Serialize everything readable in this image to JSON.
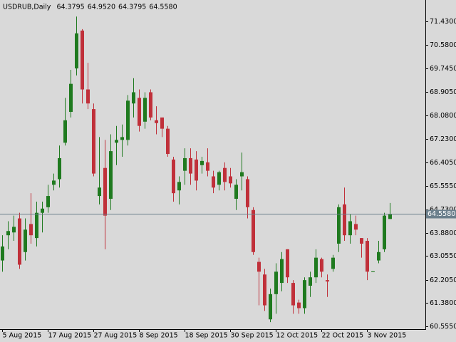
{
  "chart_data": {
    "type": "candlestick",
    "title": "USDRUB,Daily",
    "title_values": [
      "64.3795",
      "64.9520",
      "64.3795",
      "64.5580"
    ],
    "categories": [
      "5 Aug 2015",
      null,
      null,
      null,
      null,
      null,
      null,
      null,
      "17 Aug 2015",
      null,
      null,
      null,
      null,
      null,
      null,
      null,
      "27 Aug 2015",
      null,
      null,
      null,
      null,
      null,
      null,
      null,
      "8 Sep 2015",
      null,
      null,
      null,
      null,
      null,
      null,
      null,
      "18 Sep 2015",
      null,
      null,
      null,
      null,
      null,
      null,
      null,
      "30 Sep 2015",
      null,
      null,
      null,
      null,
      null,
      null,
      null,
      "12 Oct 2015",
      null,
      null,
      null,
      null,
      null,
      null,
      null,
      "22 Oct 2015",
      null,
      null,
      null,
      null,
      null,
      null,
      null,
      "3 Nov 2015",
      null,
      null,
      null,
      null
    ],
    "open": [
      62.9,
      63.8,
      63.9,
      64.4,
      63.2,
      64.2,
      63.7,
      64.6,
      64.8,
      65.6,
      65.8,
      67.1,
      68.2,
      69.75,
      71.1,
      69.0,
      68.3,
      65.2,
      66.2,
      65.1,
      67.1,
      67.2,
      67.2,
      68.5,
      68.7,
      67.85,
      68.9,
      67.9,
      68.0,
      67.6,
      66.5,
      65.4,
      66.1,
      66.55,
      66.5,
      66.3,
      66.4,
      65.9,
      65.6,
      66.2,
      65.9,
      65.1,
      65.9,
      65.8,
      64.7,
      62.85,
      62.4,
      60.8,
      61.7,
      62.1,
      63.3,
      62.1,
      61.4,
      61.2,
      62.0,
      62.3,
      62.95,
      62.2,
      62.6,
      63.5,
      64.9,
      63.8,
      64.2,
      63.7,
      63.6,
      62.5,
      62.9,
      63.3,
      64.3795
    ],
    "high": [
      63.8,
      64.3,
      64.5,
      64.6,
      64.4,
      65.3,
      65.0,
      65.0,
      65.6,
      66.0,
      67.0,
      68.7,
      69.7,
      71.6,
      71.15,
      69.95,
      68.5,
      67.3,
      67.2,
      67.4,
      67.7,
      67.75,
      68.8,
      69.4,
      69.0,
      68.9,
      69.0,
      68.4,
      68.0,
      67.7,
      66.6,
      65.9,
      66.9,
      66.9,
      66.8,
      66.6,
      66.9,
      66.1,
      66.1,
      66.4,
      66.2,
      65.8,
      66.75,
      65.9,
      64.8,
      63.0,
      62.6,
      61.9,
      62.8,
      63.2,
      63.3,
      62.2,
      61.5,
      62.3,
      62.5,
      63.3,
      63.0,
      62.4,
      63.1,
      64.9,
      65.5,
      64.55,
      64.5,
      63.7,
      63.7,
      62.52,
      63.6,
      64.6,
      64.952
    ],
    "low": [
      62.5,
      63.3,
      63.6,
      62.6,
      62.9,
      63.5,
      63.4,
      63.9,
      64.6,
      65.4,
      65.5,
      67.0,
      68.0,
      69.5,
      68.5,
      68.3,
      65.9,
      64.9,
      63.3,
      64.7,
      66.3,
      66.6,
      67.0,
      68.0,
      67.5,
      67.6,
      67.9,
      67.4,
      67.3,
      66.6,
      65.0,
      64.9,
      65.6,
      65.6,
      65.4,
      66.0,
      65.9,
      65.3,
      65.4,
      65.4,
      65.5,
      64.7,
      65.4,
      64.4,
      63.1,
      61.3,
      61.1,
      60.7,
      61.0,
      61.8,
      62.1,
      61.0,
      61.0,
      61.0,
      61.6,
      62.1,
      62.3,
      61.6,
      62.5,
      63.2,
      63.6,
      63.5,
      63.8,
      63.0,
      62.2,
      62.5,
      62.8,
      63.2,
      64.3795
    ],
    "close": [
      63.4,
      63.95,
      64.1,
      62.75,
      64.0,
      63.8,
      64.6,
      64.75,
      65.2,
      65.75,
      66.55,
      67.9,
      69.2,
      71.0,
      69.0,
      68.5,
      66.0,
      65.5,
      64.5,
      66.8,
      67.2,
      67.3,
      68.6,
      68.9,
      67.7,
      68.7,
      68.0,
      67.8,
      67.6,
      66.7,
      65.3,
      65.7,
      66.55,
      66.0,
      65.75,
      66.45,
      66.1,
      65.5,
      66.05,
      65.7,
      65.65,
      65.6,
      66.05,
      64.8,
      63.2,
      62.5,
      61.3,
      61.7,
      62.5,
      62.95,
      62.3,
      61.3,
      61.2,
      62.2,
      62.3,
      63.0,
      62.5,
      62.15,
      63.0,
      64.8,
      63.8,
      64.3,
      64.0,
      63.5,
      62.5,
      62.51,
      63.2,
      64.5,
      64.558
    ],
    "up_color": "#1f7a1f",
    "down_color": "#c0303a",
    "current_price": {
      "value": 64.558,
      "label": "64.5580"
    },
    "current_price_color": "#6b7f8c",
    "ylim": [
      60.45,
      72.19
    ],
    "yticks": [
      {
        "value": 71.43,
        "label": "71.4300"
      },
      {
        "value": 70.58,
        "label": "70.5800"
      },
      {
        "value": 69.745,
        "label": "69.7450"
      },
      {
        "value": 68.905,
        "label": "68.9050"
      },
      {
        "value": 68.08,
        "label": "68.0800"
      },
      {
        "value": 67.23,
        "label": "67.2300"
      },
      {
        "value": 66.405,
        "label": "66.4050"
      },
      {
        "value": 65.555,
        "label": "65.5550"
      },
      {
        "value": 64.73,
        "label": "64.7300"
      },
      {
        "value": 63.88,
        "label": "63.8800"
      },
      {
        "value": 63.055,
        "label": "63.0550"
      },
      {
        "value": 62.205,
        "label": "62.2050"
      },
      {
        "value": 61.38,
        "label": "61.3800"
      },
      {
        "value": 60.555,
        "label": "60.5550"
      }
    ],
    "grid": false
  }
}
